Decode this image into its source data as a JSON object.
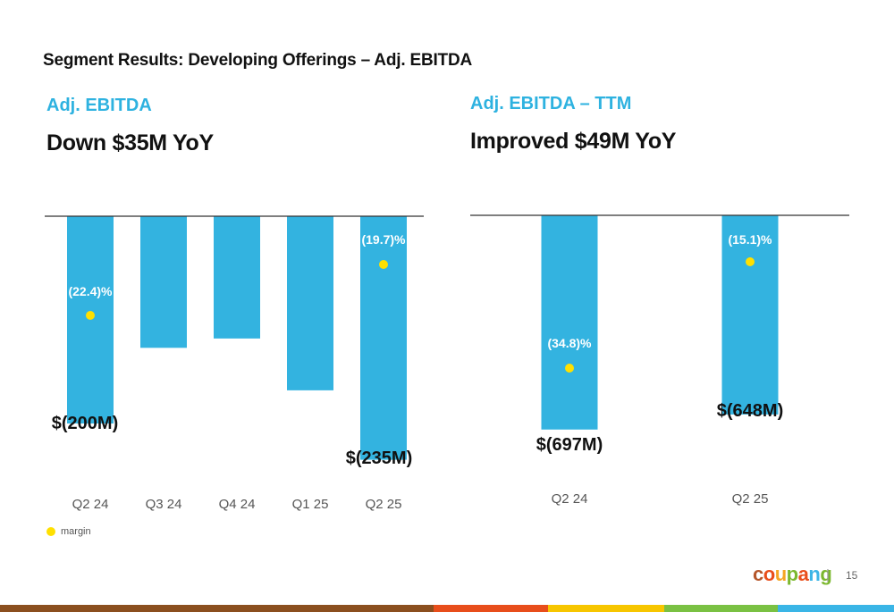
{
  "page": {
    "title": "Segment Results: Developing Offerings – Adj. EBITDA",
    "page_number": "15",
    "separator": "|"
  },
  "left_panel": {
    "subtitle": "Adj. EBITDA",
    "headline": "Down $35M YoY"
  },
  "right_panel": {
    "subtitle": "Adj. EBITDA – TTM",
    "headline": "Improved $49M YoY"
  },
  "legend": {
    "label": "margin"
  },
  "logo": {
    "letters": [
      "c",
      "o",
      "u",
      "p",
      "a",
      "n",
      "g"
    ],
    "colors": [
      "#b5562b",
      "#e94e1b",
      "#f5a623",
      "#7cb82f",
      "#e94e1b",
      "#3db5e6",
      "#7cb82f"
    ]
  },
  "colors": {
    "bar": "#33b3e0",
    "margin_dot": "#ffe000",
    "axis": "#333333",
    "footer": [
      "#8b4f1f",
      "#e84e1b",
      "#f7c600",
      "#7ac143",
      "#3ab5e6"
    ]
  },
  "chart_data": [
    {
      "type": "bar",
      "categories": [
        "Q2 24",
        "Q3 24",
        "Q4 24",
        "Q1 25",
        "Q2 25"
      ],
      "series": [
        {
          "values": [
            -200,
            -127,
            -118,
            -168,
            -235
          ]
        }
      ],
      "margin": [
        {
          "category": "Q2 24",
          "value": -22.4,
          "label": "(22.4)%"
        },
        {
          "category": "Q2 25",
          "value": -19.7,
          "label": "(19.7)%"
        }
      ],
      "data_labels": [
        {
          "category": "Q2 24",
          "label": "$(200M)"
        },
        {
          "category": "Q2 25",
          "label": "$(235M)"
        }
      ],
      "ylim": [
        -250,
        0
      ]
    },
    {
      "type": "bar",
      "categories": [
        "Q2 24",
        "Q2 25"
      ],
      "series": [
        {
          "values": [
            -697,
            -648
          ]
        }
      ],
      "margin": [
        {
          "category": "Q2 24",
          "value": -34.8,
          "label": "(34.8)%"
        },
        {
          "category": "Q2 25",
          "value": -15.1,
          "label": "(15.1)%"
        }
      ],
      "data_labels": [
        {
          "category": "Q2 24",
          "label": "$(697M)"
        },
        {
          "category": "Q2 25",
          "label": "$(648M)"
        }
      ],
      "ylim": [
        -750,
        0
      ]
    }
  ]
}
